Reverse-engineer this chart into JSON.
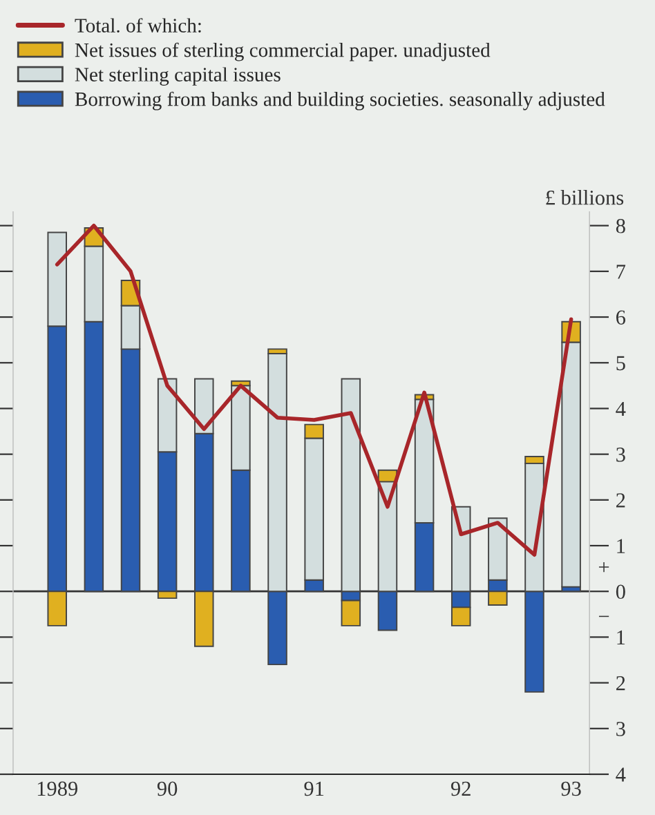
{
  "chart_data": {
    "type": "bar",
    "stacked": true,
    "ylabel": "£ billions",
    "categories": [
      "1989",
      null,
      null,
      "90",
      null,
      null,
      null,
      "91",
      null,
      null,
      null,
      "92",
      null,
      null,
      "93"
    ],
    "series": [
      {
        "name": "Borrowing from banks and building societies. seasonally adjusted",
        "color": "#2a5db0",
        "values": [
          5.8,
          5.9,
          5.3,
          3.05,
          3.45,
          2.65,
          -1.6,
          0.25,
          -0.2,
          -0.85,
          1.5,
          -0.35,
          0.25,
          -2.2,
          0.1
        ]
      },
      {
        "name": "Net sterling capital issues",
        "color": "#d3dede",
        "values": [
          2.05,
          1.65,
          0.95,
          1.6,
          1.2,
          1.85,
          5.2,
          3.1,
          4.65,
          2.4,
          2.7,
          1.85,
          1.35,
          2.8,
          5.35
        ]
      },
      {
        "name": "Net issues of sterling commercial paper. unadjusted",
        "color": "#e0b020",
        "values": [
          -0.75,
          0.4,
          0.55,
          -0.15,
          -1.2,
          0.1,
          0.1,
          0.3,
          -0.55,
          0.25,
          0.1,
          -0.4,
          -0.3,
          0.15,
          0.45
        ]
      },
      {
        "name": "Total. of which:",
        "type": "line",
        "color": "#a8262a",
        "values": [
          7.15,
          8.0,
          7.0,
          4.5,
          3.55,
          4.5,
          3.8,
          3.75,
          3.9,
          1.85,
          4.35,
          1.25,
          1.5,
          0.8,
          5.95
        ]
      }
    ],
    "ylim": [
      -4,
      8.3
    ],
    "yticks": [
      {
        "value": -4,
        "label": "4"
      },
      {
        "value": -3,
        "label": "3"
      },
      {
        "value": -2,
        "label": "2"
      },
      {
        "value": -1,
        "label": "1"
      },
      0,
      1,
      2,
      3,
      4,
      5,
      6,
      7,
      8
    ],
    "ref_lines": [
      {
        "axis": "y",
        "value": 0,
        "color": "#333333"
      }
    ],
    "annotations": [
      "+",
      "−"
    ],
    "legend": "top left",
    "grid": false
  }
}
